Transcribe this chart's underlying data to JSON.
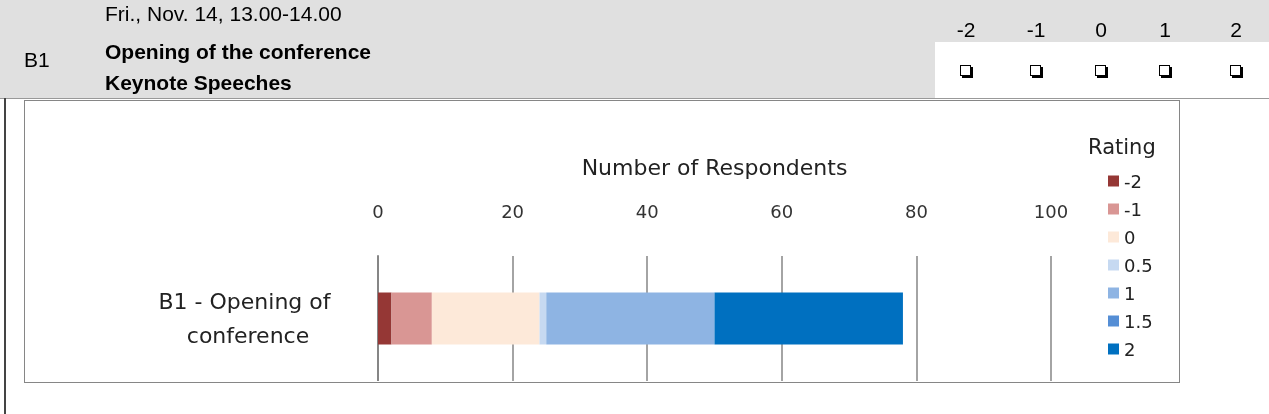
{
  "chart_data": {
    "type": "bar",
    "orientation": "horizontal",
    "stacked": true,
    "title": "Opening of the conference",
    "subtitle": "Keynote Speeches",
    "annotations": [
      "Fri., Nov. 14, 13.00-14.00",
      "B1",
      "-2",
      "-1",
      "0",
      "1",
      "2"
    ],
    "xlabel": "Number of Respondents",
    "legend_title": "Rating",
    "categories": [
      "B1 - Opening of conference"
    ],
    "series": [
      {
        "name": "-2",
        "color": "#953735",
        "values": [
          2
        ]
      },
      {
        "name": "-1",
        "color": "#d99694",
        "values": [
          6
        ]
      },
      {
        "name": "0",
        "color": "#fde9d9",
        "values": [
          16
        ]
      },
      {
        "name": "0.5",
        "color": "#c6d9f1",
        "values": [
          1
        ]
      },
      {
        "name": "1",
        "color": "#8eb4e3",
        "values": [
          25
        ]
      },
      {
        "name": "1.5",
        "color": "#558ed5",
        "values": [
          0
        ]
      },
      {
        "name": "2",
        "color": "#0070c0",
        "values": [
          28
        ]
      }
    ],
    "xlim": [
      0,
      100
    ],
    "xticks": [
      0,
      20,
      40,
      60,
      80,
      100
    ],
    "grid": "x",
    "legend": "right"
  }
}
